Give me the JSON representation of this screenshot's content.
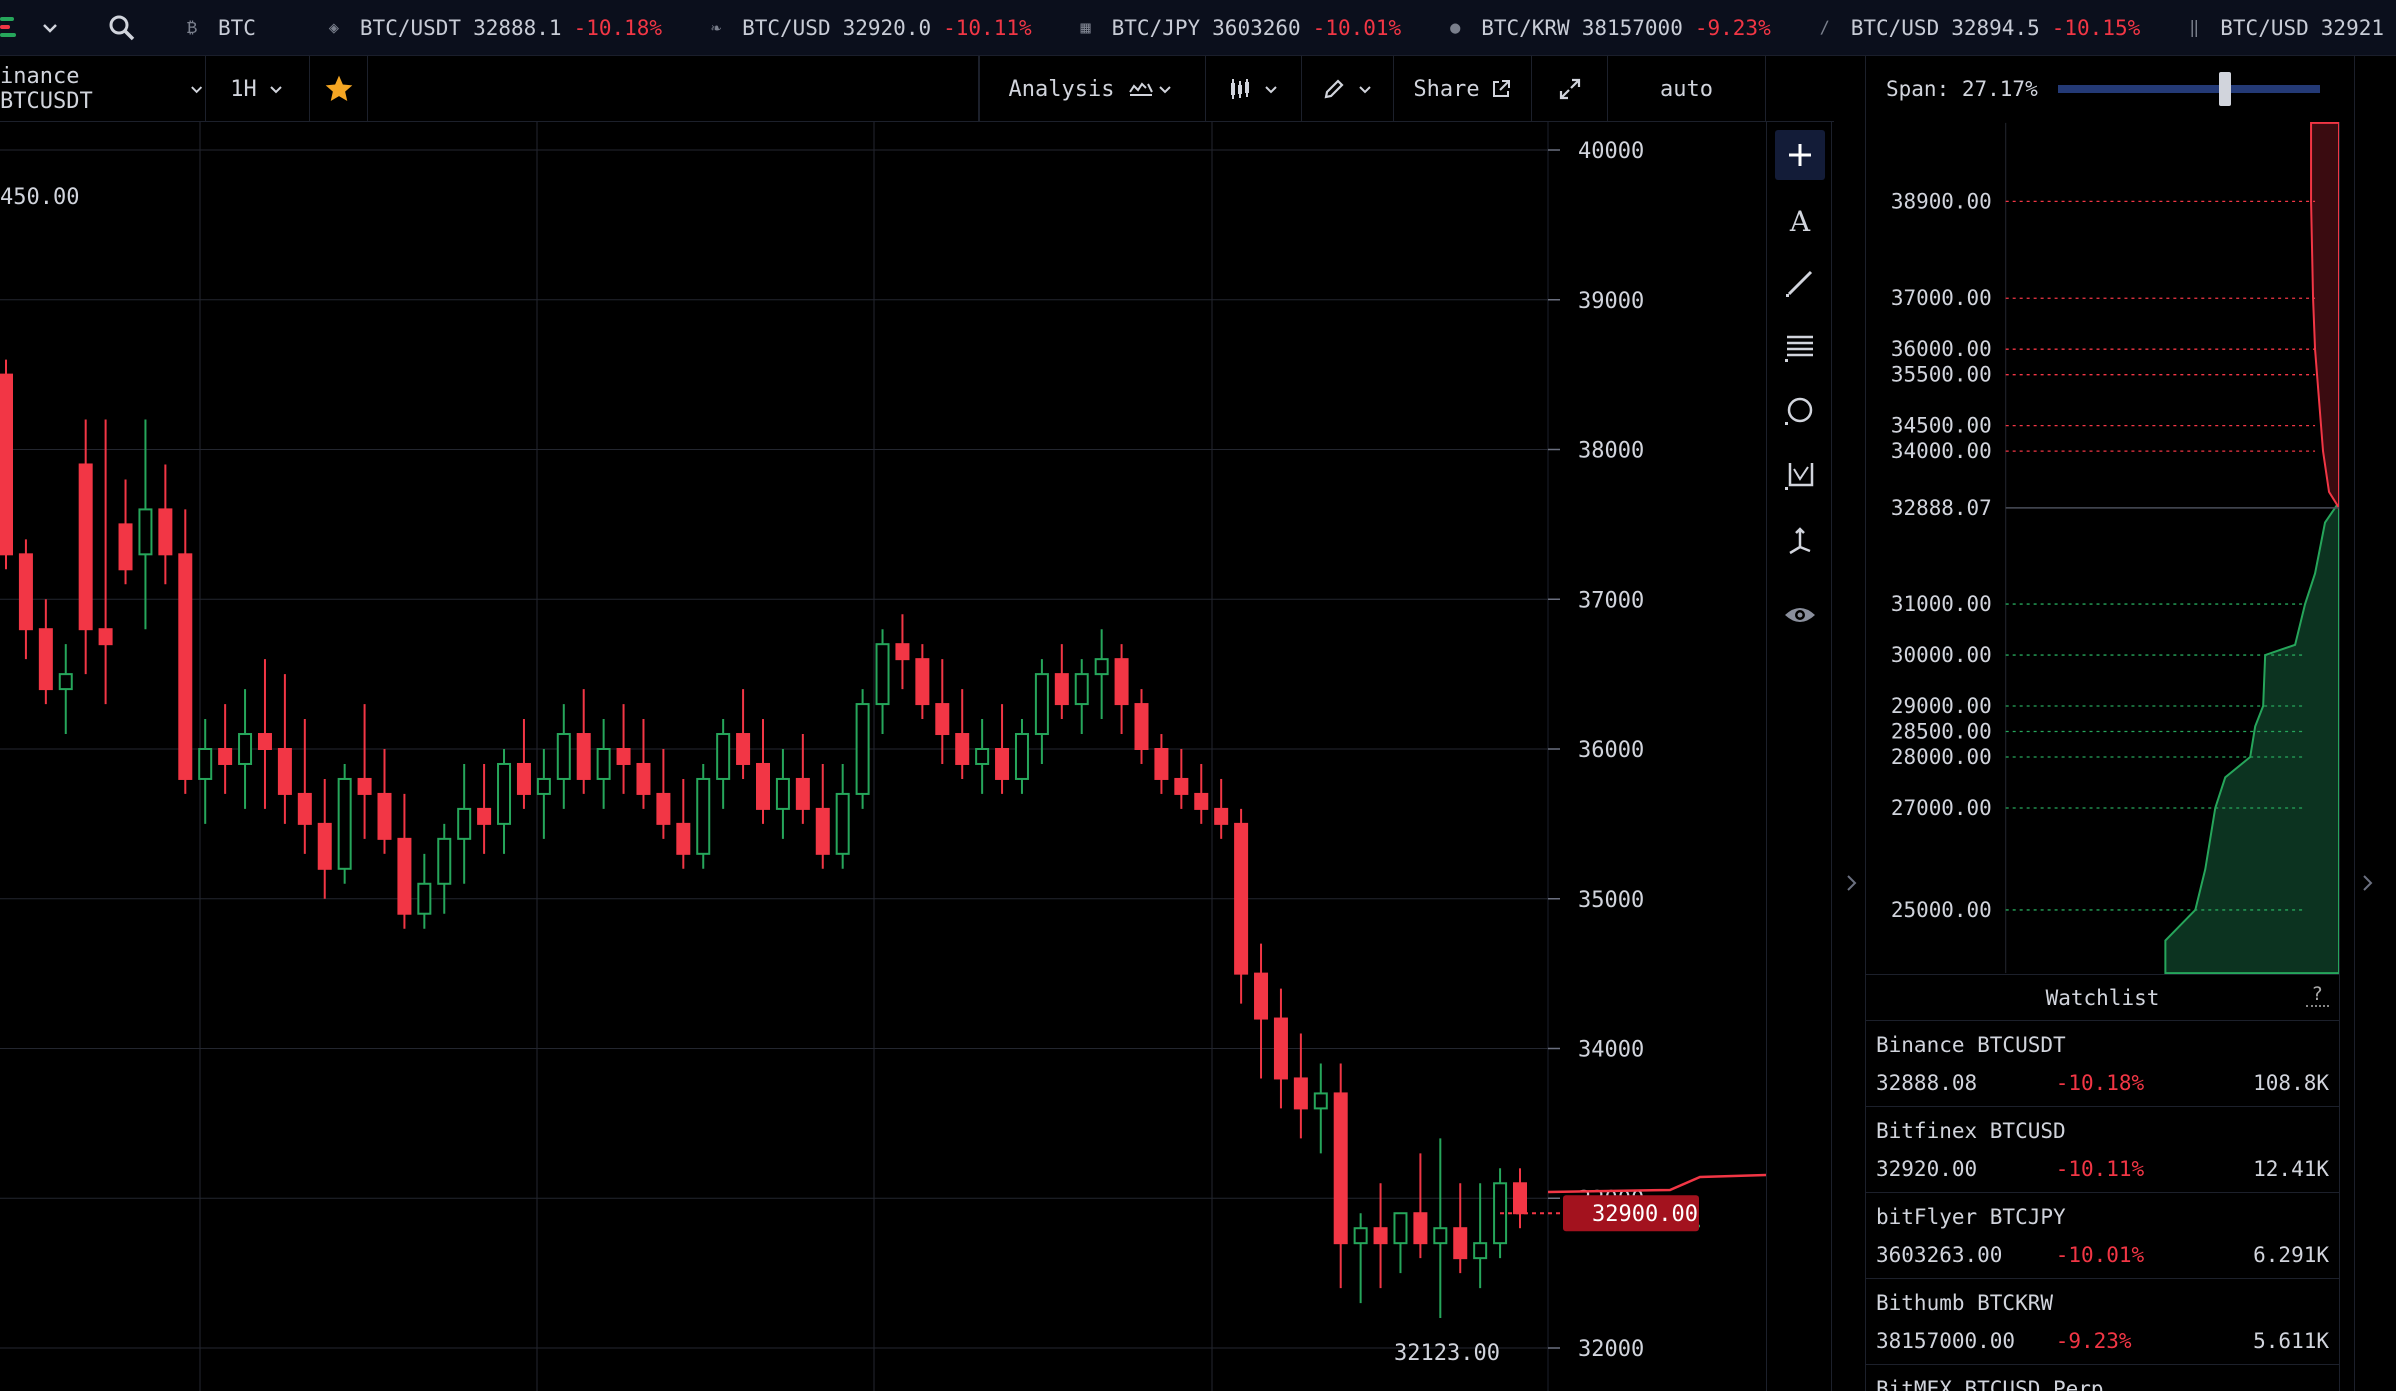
{
  "ticker": {
    "items": [
      {
        "symbol": "BTC",
        "price": "",
        "change": "",
        "icon": "bitcoin-icon"
      },
      {
        "symbol": "BTC/USDT",
        "price": "32888.1",
        "change": "-10.18%",
        "icon": "binance-icon"
      },
      {
        "symbol": "BTC/USD",
        "price": "32920.0",
        "change": "-10.11%",
        "icon": "bitfinex-leaf-icon"
      },
      {
        "symbol": "BTC/JPY",
        "price": "3603260",
        "change": "-10.01%",
        "icon": "bitflyer-icon"
      },
      {
        "symbol": "BTC/KRW",
        "price": "38157000",
        "change": "-9.23%",
        "icon": "bithumb-icon"
      },
      {
        "symbol": "BTC/USD",
        "price": "32894.5",
        "change": "-10.15%",
        "icon": "bitmex-icon"
      },
      {
        "symbol": "BTC/USD",
        "price": "32921",
        "change": "",
        "icon": "exchange-bars-icon"
      }
    ]
  },
  "toolbar": {
    "market": "inance BTCUSDT",
    "interval": "1H",
    "analysis_label": "Analysis",
    "share_label": "Share",
    "scale_mode": "auto"
  },
  "chart_data": {
    "type": "candlestick",
    "y_ticks": [
      "40000",
      "39000",
      "38000",
      "37000",
      "36000",
      "35000",
      "34000",
      "33000",
      "32000"
    ],
    "ylim": [
      31900,
      40200
    ],
    "high_label": "450.00",
    "low_label": "32123.00",
    "current_price_label": "32900.00",
    "up_color": "#26a65b",
    "down_color": "#f23645",
    "candles": [
      [
        38500,
        38600,
        37200,
        37300
      ],
      [
        37300,
        37400,
        36600,
        36800
      ],
      [
        36800,
        37000,
        36300,
        36400
      ],
      [
        36400,
        36700,
        36100,
        36500
      ],
      [
        37900,
        38200,
        36500,
        36800
      ],
      [
        36800,
        38200,
        36300,
        36700
      ],
      [
        37500,
        37800,
        37100,
        37200
      ],
      [
        37300,
        38200,
        36800,
        37600
      ],
      [
        37600,
        37900,
        37100,
        37300
      ],
      [
        37300,
        37600,
        35700,
        35800
      ],
      [
        35800,
        36200,
        35500,
        36000
      ],
      [
        36000,
        36300,
        35700,
        35900
      ],
      [
        35900,
        36400,
        35600,
        36100
      ],
      [
        36100,
        36600,
        35600,
        36000
      ],
      [
        36000,
        36500,
        35500,
        35700
      ],
      [
        35700,
        36200,
        35300,
        35500
      ],
      [
        35500,
        35800,
        35000,
        35200
      ],
      [
        35200,
        35900,
        35100,
        35800
      ],
      [
        35800,
        36300,
        35400,
        35700
      ],
      [
        35700,
        36000,
        35300,
        35400
      ],
      [
        35400,
        35700,
        34800,
        34900
      ],
      [
        34900,
        35300,
        34800,
        35100
      ],
      [
        35100,
        35500,
        34900,
        35400
      ],
      [
        35400,
        35900,
        35100,
        35600
      ],
      [
        35600,
        35900,
        35300,
        35500
      ],
      [
        35500,
        36000,
        35300,
        35900
      ],
      [
        35900,
        36200,
        35600,
        35700
      ],
      [
        35700,
        36000,
        35400,
        35800
      ],
      [
        35800,
        36300,
        35600,
        36100
      ],
      [
        36100,
        36400,
        35700,
        35800
      ],
      [
        35800,
        36200,
        35600,
        36000
      ],
      [
        36000,
        36300,
        35700,
        35900
      ],
      [
        35900,
        36200,
        35600,
        35700
      ],
      [
        35700,
        36000,
        35400,
        35500
      ],
      [
        35500,
        35800,
        35200,
        35300
      ],
      [
        35300,
        35900,
        35200,
        35800
      ],
      [
        35800,
        36200,
        35600,
        36100
      ],
      [
        36100,
        36400,
        35800,
        35900
      ],
      [
        35900,
        36200,
        35500,
        35600
      ],
      [
        35600,
        36000,
        35400,
        35800
      ],
      [
        35800,
        36100,
        35500,
        35600
      ],
      [
        35600,
        35900,
        35200,
        35300
      ],
      [
        35300,
        35900,
        35200,
        35700
      ],
      [
        35700,
        36400,
        35600,
        36300
      ],
      [
        36300,
        36800,
        36100,
        36700
      ],
      [
        36700,
        36900,
        36400,
        36600
      ],
      [
        36600,
        36700,
        36200,
        36300
      ],
      [
        36300,
        36600,
        35900,
        36100
      ],
      [
        36100,
        36400,
        35800,
        35900
      ],
      [
        35900,
        36200,
        35700,
        36000
      ],
      [
        36000,
        36300,
        35700,
        35800
      ],
      [
        35800,
        36200,
        35700,
        36100
      ],
      [
        36100,
        36600,
        35900,
        36500
      ],
      [
        36500,
        36700,
        36200,
        36300
      ],
      [
        36300,
        36600,
        36100,
        36500
      ],
      [
        36500,
        36800,
        36200,
        36600
      ],
      [
        36600,
        36700,
        36100,
        36300
      ],
      [
        36300,
        36400,
        35900,
        36000
      ],
      [
        36000,
        36100,
        35700,
        35800
      ],
      [
        35800,
        36000,
        35600,
        35700
      ],
      [
        35700,
        35900,
        35500,
        35600
      ],
      [
        35600,
        35800,
        35400,
        35500
      ],
      [
        35500,
        35600,
        34300,
        34500
      ],
      [
        34500,
        34700,
        33800,
        34200
      ],
      [
        34200,
        34400,
        33600,
        33800
      ],
      [
        33800,
        34100,
        33400,
        33600
      ],
      [
        33600,
        33900,
        33300,
        33700
      ],
      [
        33700,
        33900,
        32400,
        32700
      ],
      [
        32700,
        32900,
        32300,
        32800
      ],
      [
        32800,
        33100,
        32400,
        32700
      ],
      [
        32700,
        32900,
        32500,
        32900
      ],
      [
        32900,
        33300,
        32600,
        32700
      ],
      [
        32700,
        33400,
        32200,
        32800
      ],
      [
        32800,
        33100,
        32500,
        32600
      ],
      [
        32600,
        33100,
        32400,
        32700
      ],
      [
        32700,
        33200,
        32600,
        33100
      ],
      [
        33100,
        33200,
        32800,
        32900
      ]
    ]
  },
  "depth": {
    "span_label": "Span: 27.17%",
    "span_value": 0.64,
    "ask_levels": [
      "38900.00",
      "37000.00",
      "36000.00",
      "35500.00",
      "34500.00",
      "34000.00"
    ],
    "mid_label": "32888.07",
    "bid_levels": [
      "31000.00",
      "30000.00",
      "29000.00",
      "28500.00",
      "28000.00",
      "27000.00",
      "25000.00"
    ],
    "ylim": [
      23800,
      40400
    ],
    "ask_color": "#f23645",
    "bid_color": "#26a65b"
  },
  "watchlist": {
    "title": "Watchlist",
    "help": "?",
    "rows": [
      {
        "name": "Binance BTCUSDT",
        "price": "32888.08",
        "change": "-10.18%",
        "volume": "108.8K"
      },
      {
        "name": "Bitfinex BTCUSD",
        "price": "32920.00",
        "change": "-10.11%",
        "volume": "12.41K"
      },
      {
        "name": "bitFlyer BTCJPY",
        "price": "3603263.00",
        "change": "-10.01%",
        "volume": "6.291K"
      },
      {
        "name": "Bithumb BTCKRW",
        "price": "38157000.00",
        "change": "-9.23%",
        "volume": "5.611K"
      },
      {
        "name": "BitMEX BTCUSD Perp",
        "price": "",
        "change": "",
        "volume": ""
      }
    ]
  }
}
